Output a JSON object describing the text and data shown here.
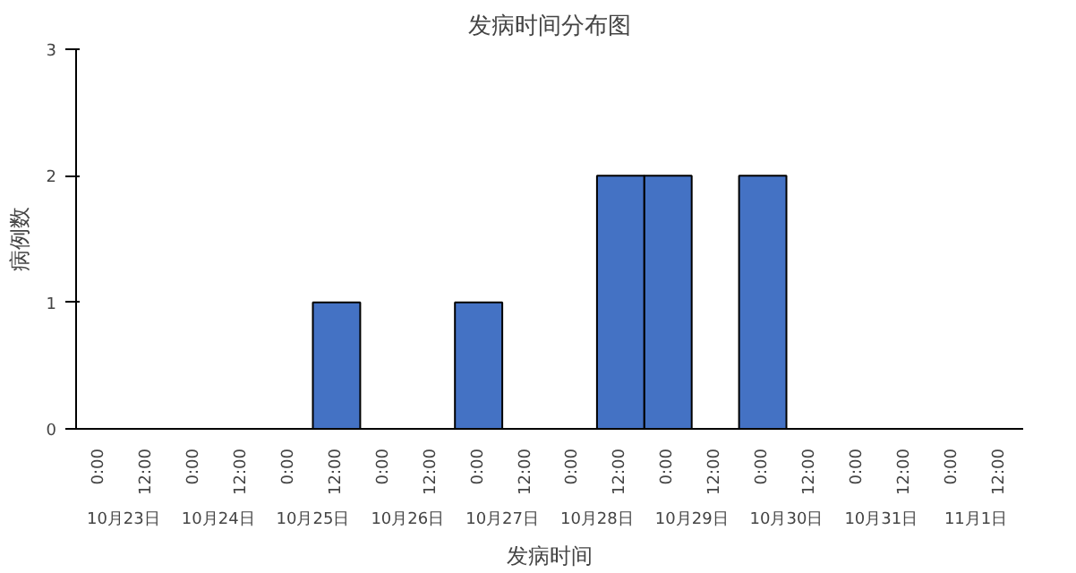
{
  "chart_data": {
    "type": "bar",
    "title": "发病时间分布图",
    "xlabel": "发病时间",
    "ylabel": "病例数",
    "categories": [
      "0:00",
      "12:00",
      "0:00",
      "12:00",
      "0:00",
      "12:00",
      "0:00",
      "12:00",
      "0:00",
      "12:00",
      "0:00",
      "12:00",
      "0:00",
      "12:00",
      "0:00",
      "12:00",
      "0:00",
      "12:00",
      "0:00",
      "12:00"
    ],
    "annotations": [
      "10月23日",
      "10月24日",
      "10月25日",
      "10月26日",
      "10月27日",
      "10月28日",
      "10月29日",
      "10月30日",
      "10月31日",
      "11月1日"
    ],
    "values": [
      0,
      0,
      0,
      0,
      0,
      1,
      0,
      0,
      1,
      0,
      0,
      2,
      2,
      0,
      2,
      0,
      0,
      0,
      0,
      0
    ],
    "color": "#4472c4",
    "ylim": [
      0,
      3
    ],
    "yticks": [
      0,
      1,
      2,
      3
    ],
    "grid": false
  }
}
